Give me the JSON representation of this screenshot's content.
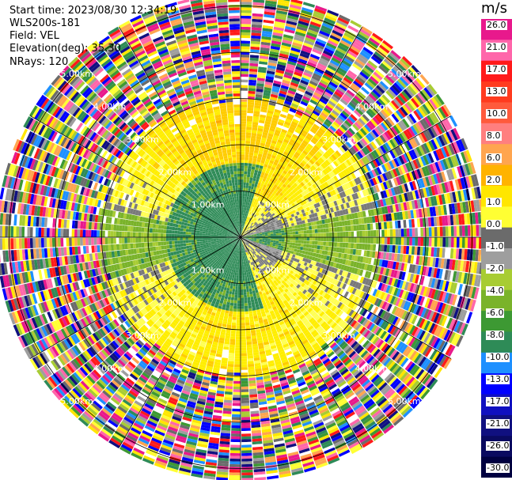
{
  "header": {
    "start_time": "Start time: 2023/08/30 12:34:19",
    "instrument": "WLS200s-181",
    "field": "Field: VEL",
    "elevation": "Elevation(deg): 35.30",
    "nrays": "NRays: 120"
  },
  "colorbar": {
    "unit": "m/s",
    "labels": [
      "26.0",
      "21.0",
      "17.0",
      "13.0",
      "10.0",
      "8.0",
      "6.0",
      "2.0",
      "1.0",
      "0.0",
      "-1.0",
      "-2.0",
      "-4.0",
      "-6.0",
      "-8.0",
      "-10.0",
      "-13.0",
      "-17.0",
      "-21.0",
      "-26.0",
      "-30.0"
    ],
    "colors": [
      "#e8198c",
      "#ff66aa",
      "#ff1a1a",
      "#ff3b1f",
      "#ff5a3c",
      "#ff7f7f",
      "#ffa54f",
      "#ffb300",
      "#ffe600",
      "#ffff33",
      "#6b6b6b",
      "#9e9e9e",
      "#a8cc33",
      "#7ab32a",
      "#3d9933",
      "#2e8b57",
      "#1e90ff",
      "#0000ff",
      "#1010c0",
      "#101080",
      "#0a0a60",
      "#000040"
    ]
  },
  "range_ring_labels": [
    "1.00km",
    "2.00km",
    "3.00km",
    "4.00km",
    "5.00km"
  ],
  "chart_data": {
    "type": "heatmap",
    "projection": "polar PPI",
    "field": "VEL",
    "units": "m/s",
    "vmin": -30.0,
    "vmax": 26.0,
    "n_rays": 120,
    "range_rings_km": [
      1,
      2,
      3,
      4,
      5
    ],
    "valid_data_range_km": 3.0,
    "pattern": {
      "north_mean_ms": 4,
      "south_mean_ms": 3,
      "inner_west_mean_ms": -3,
      "beyond_valid_range": "noise across full color scale"
    }
  }
}
